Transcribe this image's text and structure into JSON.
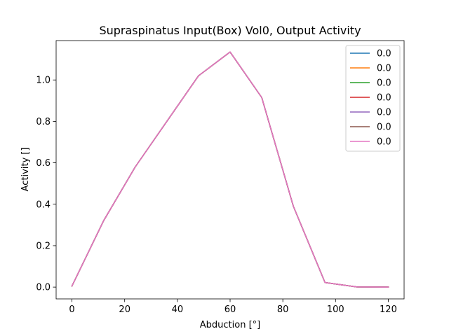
{
  "chart_data": {
    "type": "line",
    "title": "Supraspinatus Input(Box) Vol0, Output Activity",
    "xlabel": "Abduction [°]",
    "ylabel": "Activity []",
    "xlim": [
      -6,
      126
    ],
    "ylim": [
      -0.057,
      1.19
    ],
    "x_ticks": [
      0,
      20,
      40,
      60,
      80,
      100,
      120
    ],
    "y_ticks": [
      0.0,
      0.2,
      0.4,
      0.6,
      0.8,
      1.0
    ],
    "y_tick_labels": [
      "0.0",
      "0.2",
      "0.4",
      "0.6",
      "0.8",
      "1.0"
    ],
    "grid": false,
    "legend_position": "top-right",
    "x": [
      0,
      12,
      24,
      36,
      48,
      60,
      72,
      84,
      96,
      108,
      120
    ],
    "series": [
      {
        "name": "0.0",
        "color": "#1f77b4",
        "values": [
          0.005,
          0.32,
          0.58,
          0.8,
          1.02,
          1.135,
          0.915,
          0.39,
          0.022,
          0.001,
          0.0
        ]
      },
      {
        "name": "0.0",
        "color": "#ff7f0e",
        "values": [
          0.005,
          0.32,
          0.58,
          0.8,
          1.02,
          1.135,
          0.915,
          0.39,
          0.022,
          0.001,
          0.0
        ]
      },
      {
        "name": "0.0",
        "color": "#2ca02c",
        "values": [
          0.005,
          0.32,
          0.58,
          0.8,
          1.02,
          1.135,
          0.915,
          0.39,
          0.022,
          0.001,
          0.0
        ]
      },
      {
        "name": "0.0",
        "color": "#d62728",
        "values": [
          0.005,
          0.32,
          0.58,
          0.8,
          1.02,
          1.135,
          0.915,
          0.39,
          0.022,
          0.001,
          0.0
        ]
      },
      {
        "name": "0.0",
        "color": "#9467bd",
        "values": [
          0.005,
          0.32,
          0.58,
          0.8,
          1.02,
          1.135,
          0.915,
          0.39,
          0.022,
          0.001,
          0.0
        ]
      },
      {
        "name": "0.0",
        "color": "#8c564b",
        "values": [
          0.005,
          0.32,
          0.58,
          0.8,
          1.02,
          1.135,
          0.915,
          0.39,
          0.022,
          0.001,
          0.0
        ]
      },
      {
        "name": "0.0",
        "color": "#e377c2",
        "values": [
          0.005,
          0.32,
          0.58,
          0.8,
          1.02,
          1.135,
          0.915,
          0.39,
          0.022,
          0.001,
          0.0
        ]
      }
    ]
  }
}
